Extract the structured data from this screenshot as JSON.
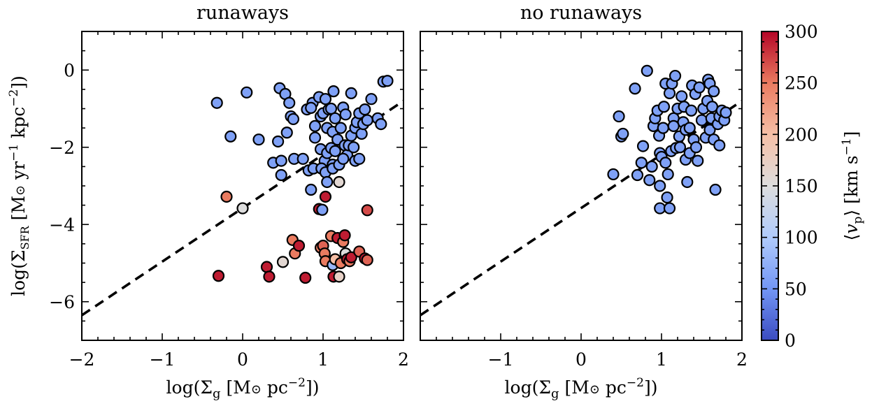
{
  "chart_data": [
    {
      "type": "scatter",
      "title": "runaways",
      "xlabel": "log(Σ_g [M⊙ pc⁻²])",
      "ylabel": "log(Σ_SFR [M⊙ yr⁻¹ kpc⁻²])",
      "xlim": [
        -2,
        2
      ],
      "ylim": [
        -7,
        1
      ],
      "xticks": [
        "−2",
        "−1",
        "0",
        "1",
        "2"
      ],
      "yticks": [
        "−6",
        "−4",
        "−2",
        "0"
      ],
      "grid": false,
      "fit_line": {
        "x": [
          -2,
          2
        ],
        "y": [
          -6.35,
          -0.8
        ]
      },
      "points": [
        {
          "x": -0.32,
          "y": -0.85,
          "v": 60
        },
        {
          "x": 0.05,
          "y": -0.58,
          "v": 60
        },
        {
          "x": -0.15,
          "y": -1.72,
          "v": 60
        },
        {
          "x": 0.2,
          "y": -1.8,
          "v": 60
        },
        {
          "x": 0.38,
          "y": -2.4,
          "v": 60
        },
        {
          "x": 0.48,
          "y": -2.35,
          "v": 60
        },
        {
          "x": 0.48,
          "y": -2.72,
          "v": 60
        },
        {
          "x": 0.46,
          "y": -0.47,
          "v": 60
        },
        {
          "x": 0.53,
          "y": -0.62,
          "v": 60
        },
        {
          "x": 0.58,
          "y": -0.85,
          "v": 60
        },
        {
          "x": 0.6,
          "y": -1.2,
          "v": 60
        },
        {
          "x": 0.63,
          "y": -1.27,
          "v": 60
        },
        {
          "x": 0.55,
          "y": -1.62,
          "v": 60
        },
        {
          "x": 0.44,
          "y": -1.85,
          "v": 60
        },
        {
          "x": 0.64,
          "y": -2.3,
          "v": 60
        },
        {
          "x": 0.75,
          "y": -2.3,
          "v": 60
        },
        {
          "x": 0.8,
          "y": -1.02,
          "v": 60
        },
        {
          "x": 0.87,
          "y": -0.85,
          "v": 60
        },
        {
          "x": 0.85,
          "y": -0.98,
          "v": 60
        },
        {
          "x": 0.95,
          "y": -0.7,
          "v": 60
        },
        {
          "x": 0.9,
          "y": -1.45,
          "v": 60
        },
        {
          "x": 0.9,
          "y": -1.75,
          "v": 60
        },
        {
          "x": 0.97,
          "y": -1.2,
          "v": 60
        },
        {
          "x": 1.0,
          "y": -1.12,
          "v": 60
        },
        {
          "x": 1.03,
          "y": -0.75,
          "v": 60
        },
        {
          "x": 1.05,
          "y": -1.5,
          "v": 60
        },
        {
          "x": 1.07,
          "y": -1.02,
          "v": 60
        },
        {
          "x": 1.13,
          "y": -0.55,
          "v": 60
        },
        {
          "x": 1.1,
          "y": -1.0,
          "v": 60
        },
        {
          "x": 1.12,
          "y": -1.6,
          "v": 60
        },
        {
          "x": 1.15,
          "y": -1.25,
          "v": 60
        },
        {
          "x": 0.97,
          "y": -2.05,
          "v": 60
        },
        {
          "x": 1.02,
          "y": -2.35,
          "v": 60
        },
        {
          "x": 1.05,
          "y": -2.15,
          "v": 60
        },
        {
          "x": 1.1,
          "y": -2.02,
          "v": 60
        },
        {
          "x": 1.12,
          "y": -2.45,
          "v": 60
        },
        {
          "x": 1.15,
          "y": -2.1,
          "v": 60
        },
        {
          "x": 1.18,
          "y": -1.8,
          "v": 60
        },
        {
          "x": 1.22,
          "y": -1.5,
          "v": 60
        },
        {
          "x": 1.25,
          "y": -0.97,
          "v": 60
        },
        {
          "x": 1.27,
          "y": -1.95,
          "v": 60
        },
        {
          "x": 1.28,
          "y": -1.15,
          "v": 60
        },
        {
          "x": 1.3,
          "y": -2.2,
          "v": 60
        },
        {
          "x": 1.32,
          "y": -1.95,
          "v": 60
        },
        {
          "x": 1.35,
          "y": -1.7,
          "v": 60
        },
        {
          "x": 1.38,
          "y": -2.0,
          "v": 60
        },
        {
          "x": 1.4,
          "y": -1.5,
          "v": 60
        },
        {
          "x": 1.42,
          "y": -1.35,
          "v": 60
        },
        {
          "x": 1.45,
          "y": -1.12,
          "v": 60
        },
        {
          "x": 1.48,
          "y": -1.65,
          "v": 60
        },
        {
          "x": 1.5,
          "y": -1.4,
          "v": 60
        },
        {
          "x": 1.52,
          "y": -1.02,
          "v": 60
        },
        {
          "x": 1.55,
          "y": -1.3,
          "v": 60
        },
        {
          "x": 1.6,
          "y": -0.75,
          "v": 60
        },
        {
          "x": 1.68,
          "y": -1.25,
          "v": 60
        },
        {
          "x": 1.72,
          "y": -1.4,
          "v": 60
        },
        {
          "x": 1.75,
          "y": -0.3,
          "v": 60
        },
        {
          "x": 1.8,
          "y": -0.28,
          "v": 60
        },
        {
          "x": 1.35,
          "y": -0.6,
          "v": 60
        },
        {
          "x": 0.82,
          "y": -2.6,
          "v": 60
        },
        {
          "x": 0.85,
          "y": -3.1,
          "v": 60
        },
        {
          "x": 0.88,
          "y": -2.55,
          "v": 60
        },
        {
          "x": 0.98,
          "y": -2.55,
          "v": 60
        },
        {
          "x": 1.03,
          "y": -2.65,
          "v": 60
        },
        {
          "x": 1.05,
          "y": -2.9,
          "v": 60
        },
        {
          "x": 1.12,
          "y": -2.55,
          "v": 60
        },
        {
          "x": 1.2,
          "y": -2.45,
          "v": 60
        },
        {
          "x": 1.25,
          "y": -2.3,
          "v": 60
        },
        {
          "x": 1.4,
          "y": -2.35,
          "v": 60
        },
        {
          "x": 1.45,
          "y": -2.3,
          "v": 60
        },
        {
          "x": 0.95,
          "y": -3.6,
          "v": 290
        },
        {
          "x": 0.99,
          "y": -3.62,
          "v": 60
        },
        {
          "x": 1.03,
          "y": -3.28,
          "v": 290
        },
        {
          "x": 1.2,
          "y": -2.9,
          "v": 160
        },
        {
          "x": 1.55,
          "y": -3.63,
          "v": 270
        },
        {
          "x": -0.2,
          "y": -3.28,
          "v": 250
        },
        {
          "x": 0.0,
          "y": -3.58,
          "v": 150
        },
        {
          "x": -0.3,
          "y": -5.33,
          "v": 290
        },
        {
          "x": 0.3,
          "y": -5.1,
          "v": 290
        },
        {
          "x": 0.33,
          "y": -5.35,
          "v": 290
        },
        {
          "x": 0.5,
          "y": -4.97,
          "v": 160
        },
        {
          "x": 0.62,
          "y": -4.4,
          "v": 250
        },
        {
          "x": 0.65,
          "y": -4.75,
          "v": 250
        },
        {
          "x": 0.7,
          "y": -4.55,
          "v": 290
        },
        {
          "x": 0.78,
          "y": -5.38,
          "v": 290
        },
        {
          "x": 0.97,
          "y": -4.6,
          "v": 250
        },
        {
          "x": 1.0,
          "y": -4.55,
          "v": 260
        },
        {
          "x": 1.02,
          "y": -4.75,
          "v": 250
        },
        {
          "x": 1.03,
          "y": -4.95,
          "v": 250
        },
        {
          "x": 1.1,
          "y": -4.3,
          "v": 250
        },
        {
          "x": 1.12,
          "y": -5.05,
          "v": 80
        },
        {
          "x": 1.13,
          "y": -5.35,
          "v": 290
        },
        {
          "x": 1.15,
          "y": -4.9,
          "v": 200
        },
        {
          "x": 1.18,
          "y": -4.35,
          "v": 290
        },
        {
          "x": 1.2,
          "y": -5.35,
          "v": 170
        },
        {
          "x": 1.22,
          "y": -5.0,
          "v": 250
        },
        {
          "x": 1.25,
          "y": -4.45,
          "v": 250
        },
        {
          "x": 1.27,
          "y": -4.28,
          "v": 290
        },
        {
          "x": 1.28,
          "y": -4.75,
          "v": 150
        },
        {
          "x": 1.3,
          "y": -4.9,
          "v": 290
        },
        {
          "x": 1.33,
          "y": -4.95,
          "v": 250
        },
        {
          "x": 1.35,
          "y": -4.85,
          "v": 290
        },
        {
          "x": 1.45,
          "y": -4.7,
          "v": 260
        },
        {
          "x": 1.52,
          "y": -4.88,
          "v": 290
        },
        {
          "x": 1.55,
          "y": -4.92,
          "v": 260
        }
      ]
    },
    {
      "type": "scatter",
      "title": "no runaways",
      "xlabel": "log(Σ_g [M⊙ pc⁻²])",
      "ylabel": "",
      "xlim": [
        -2,
        2
      ],
      "ylim": [
        -7,
        1
      ],
      "xticks": [
        "−1",
        "0",
        "1",
        "2"
      ],
      "yticks": [],
      "grid": false,
      "fit_line": {
        "x": [
          -2,
          2
        ],
        "y": [
          -6.35,
          -0.8
        ]
      },
      "points": [
        {
          "x": 0.4,
          "y": -2.7,
          "v": 60
        },
        {
          "x": 0.47,
          "y": -1.2,
          "v": 60
        },
        {
          "x": 0.5,
          "y": -1.72,
          "v": 60
        },
        {
          "x": 0.52,
          "y": -1.65,
          "v": 60
        },
        {
          "x": 0.67,
          "y": -0.48,
          "v": 60
        },
        {
          "x": 0.7,
          "y": -2.72,
          "v": 60
        },
        {
          "x": 0.75,
          "y": -2.4,
          "v": 60
        },
        {
          "x": 0.77,
          "y": -1.97,
          "v": 60
        },
        {
          "x": 0.82,
          "y": -0.02,
          "v": 60
        },
        {
          "x": 0.85,
          "y": -2.85,
          "v": 60
        },
        {
          "x": 0.88,
          "y": -2.5,
          "v": 60
        },
        {
          "x": 0.9,
          "y": -1.45,
          "v": 60
        },
        {
          "x": 0.92,
          "y": -1.25,
          "v": 60
        },
        {
          "x": 0.95,
          "y": -1.05,
          "v": 60
        },
        {
          "x": 0.97,
          "y": -1.7,
          "v": 60
        },
        {
          "x": 0.98,
          "y": -2.15,
          "v": 60
        },
        {
          "x": 0.98,
          "y": -3.0,
          "v": 60
        },
        {
          "x": 0.98,
          "y": -3.58,
          "v": 60
        },
        {
          "x": 1.0,
          "y": -2.25,
          "v": 60
        },
        {
          "x": 1.02,
          "y": -1.5,
          "v": 60
        },
        {
          "x": 1.03,
          "y": -0.95,
          "v": 60
        },
        {
          "x": 1.05,
          "y": -0.35,
          "v": 60
        },
        {
          "x": 1.05,
          "y": -2.4,
          "v": 60
        },
        {
          "x": 1.07,
          "y": -3.3,
          "v": 60
        },
        {
          "x": 1.08,
          "y": -2.7,
          "v": 60
        },
        {
          "x": 1.1,
          "y": -0.6,
          "v": 60
        },
        {
          "x": 1.1,
          "y": -3.58,
          "v": 60
        },
        {
          "x": 1.12,
          "y": -2.1,
          "v": 60
        },
        {
          "x": 1.13,
          "y": -0.35,
          "v": 60
        },
        {
          "x": 1.15,
          "y": -1.25,
          "v": 60
        },
        {
          "x": 1.17,
          "y": -0.15,
          "v": 60
        },
        {
          "x": 1.18,
          "y": -2.02,
          "v": 60
        },
        {
          "x": 1.2,
          "y": -1.0,
          "v": 60
        },
        {
          "x": 1.22,
          "y": -1.72,
          "v": 60
        },
        {
          "x": 1.23,
          "y": -2.0,
          "v": 60
        },
        {
          "x": 1.25,
          "y": -0.68,
          "v": 60
        },
        {
          "x": 1.27,
          "y": -1.35,
          "v": 60
        },
        {
          "x": 1.28,
          "y": -0.95,
          "v": 60
        },
        {
          "x": 1.3,
          "y": -1.55,
          "v": 60
        },
        {
          "x": 1.3,
          "y": -2.32,
          "v": 60
        },
        {
          "x": 1.32,
          "y": -2.9,
          "v": 60
        },
        {
          "x": 1.35,
          "y": -2.15,
          "v": 60
        },
        {
          "x": 1.37,
          "y": -1.05,
          "v": 60
        },
        {
          "x": 1.38,
          "y": -0.4,
          "v": 60
        },
        {
          "x": 1.4,
          "y": -1.8,
          "v": 60
        },
        {
          "x": 1.42,
          "y": -0.62,
          "v": 60
        },
        {
          "x": 1.43,
          "y": -2.0,
          "v": 60
        },
        {
          "x": 1.45,
          "y": -2.35,
          "v": 60
        },
        {
          "x": 1.47,
          "y": -0.45,
          "v": 60
        },
        {
          "x": 1.5,
          "y": -1.3,
          "v": 60
        },
        {
          "x": 1.52,
          "y": -1.0,
          "v": 60
        },
        {
          "x": 1.55,
          "y": -1.75,
          "v": 60
        },
        {
          "x": 1.57,
          "y": -0.8,
          "v": 60
        },
        {
          "x": 1.58,
          "y": -0.25,
          "v": 60
        },
        {
          "x": 1.6,
          "y": -1.55,
          "v": 60
        },
        {
          "x": 1.6,
          "y": -0.35,
          "v": 60
        },
        {
          "x": 1.62,
          "y": -1.25,
          "v": 60
        },
        {
          "x": 1.63,
          "y": -0.95,
          "v": 60
        },
        {
          "x": 1.65,
          "y": -1.8,
          "v": 60
        },
        {
          "x": 1.65,
          "y": -0.55,
          "v": 60
        },
        {
          "x": 1.67,
          "y": -3.1,
          "v": 60
        },
        {
          "x": 1.7,
          "y": -1.4,
          "v": 60
        },
        {
          "x": 1.72,
          "y": -1.2,
          "v": 60
        },
        {
          "x": 1.72,
          "y": -1.95,
          "v": 60
        },
        {
          "x": 1.75,
          "y": -1.05,
          "v": 60
        },
        {
          "x": 1.78,
          "y": -1.3,
          "v": 60
        },
        {
          "x": 1.8,
          "y": -1.1,
          "v": 60
        },
        {
          "x": 1.35,
          "y": -1.5,
          "v": 60
        },
        {
          "x": 1.15,
          "y": -1.45,
          "v": 60
        }
      ]
    }
  ],
  "colorbar": {
    "label": "⟨v_p⟩ [km s⁻¹]",
    "min": 0,
    "max": 300,
    "ticks": [
      "0",
      "50",
      "100",
      "150",
      "200",
      "250",
      "300"
    ],
    "colors": [
      "#3b4cc0",
      "#7396f5",
      "#b0cbfc",
      "#dddddd",
      "#f6bfa6",
      "#ea7b60",
      "#b40426"
    ]
  }
}
